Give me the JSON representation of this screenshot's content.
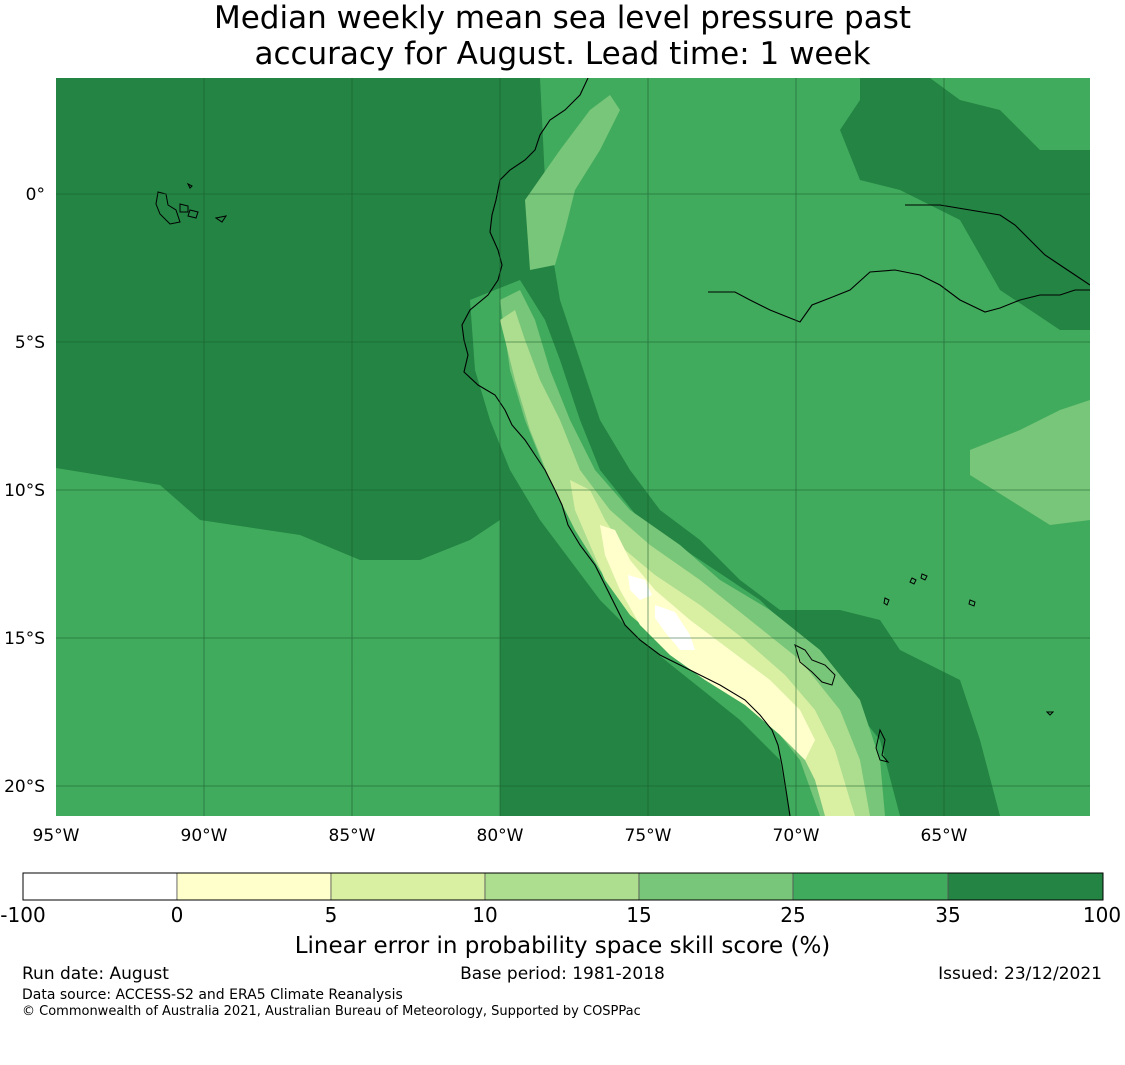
{
  "title_line1": "Median weekly mean sea level pressure past",
  "title_line2": "accuracy for August. Lead time: 1 week",
  "map": {
    "lon_range": [
      -95,
      -59.8
    ],
    "lat_range": [
      -21,
      3.9
    ],
    "lon_ticks": [
      "95°W",
      "90°W",
      "85°W",
      "80°W",
      "75°W",
      "70°W",
      "65°W"
    ],
    "lat_ticks": [
      "0°",
      "5°S",
      "10°S",
      "15°S",
      "20°S"
    ],
    "colors": {
      "c0": "#ffffff",
      "c1": "#ffffcc",
      "c2": "#d9f0a3",
      "c3": "#addd8e",
      "c4": "#78c679",
      "c5": "#41ab5d",
      "c6": "#238443"
    }
  },
  "colorbar": {
    "bounds": [
      "-100",
      "0",
      "5",
      "10",
      "15",
      "25",
      "35",
      "100"
    ],
    "colors": [
      "#ffffff",
      "#ffffcc",
      "#d9f0a3",
      "#addd8e",
      "#78c679",
      "#41ab5d",
      "#238443"
    ],
    "label": "Linear error in probability space skill score (%)"
  },
  "footer": {
    "run_date": "Run date: August",
    "base_period": "Base period: 1981-2018",
    "issued": "Issued: 23/12/2021",
    "data_source": "Data source: ACCESS-S2 and ERA5 Climate Reanalysis",
    "copyright": "© Commonwealth of Australia 2021, Australian Bureau of Meteorology, Supported by COSPPac"
  }
}
